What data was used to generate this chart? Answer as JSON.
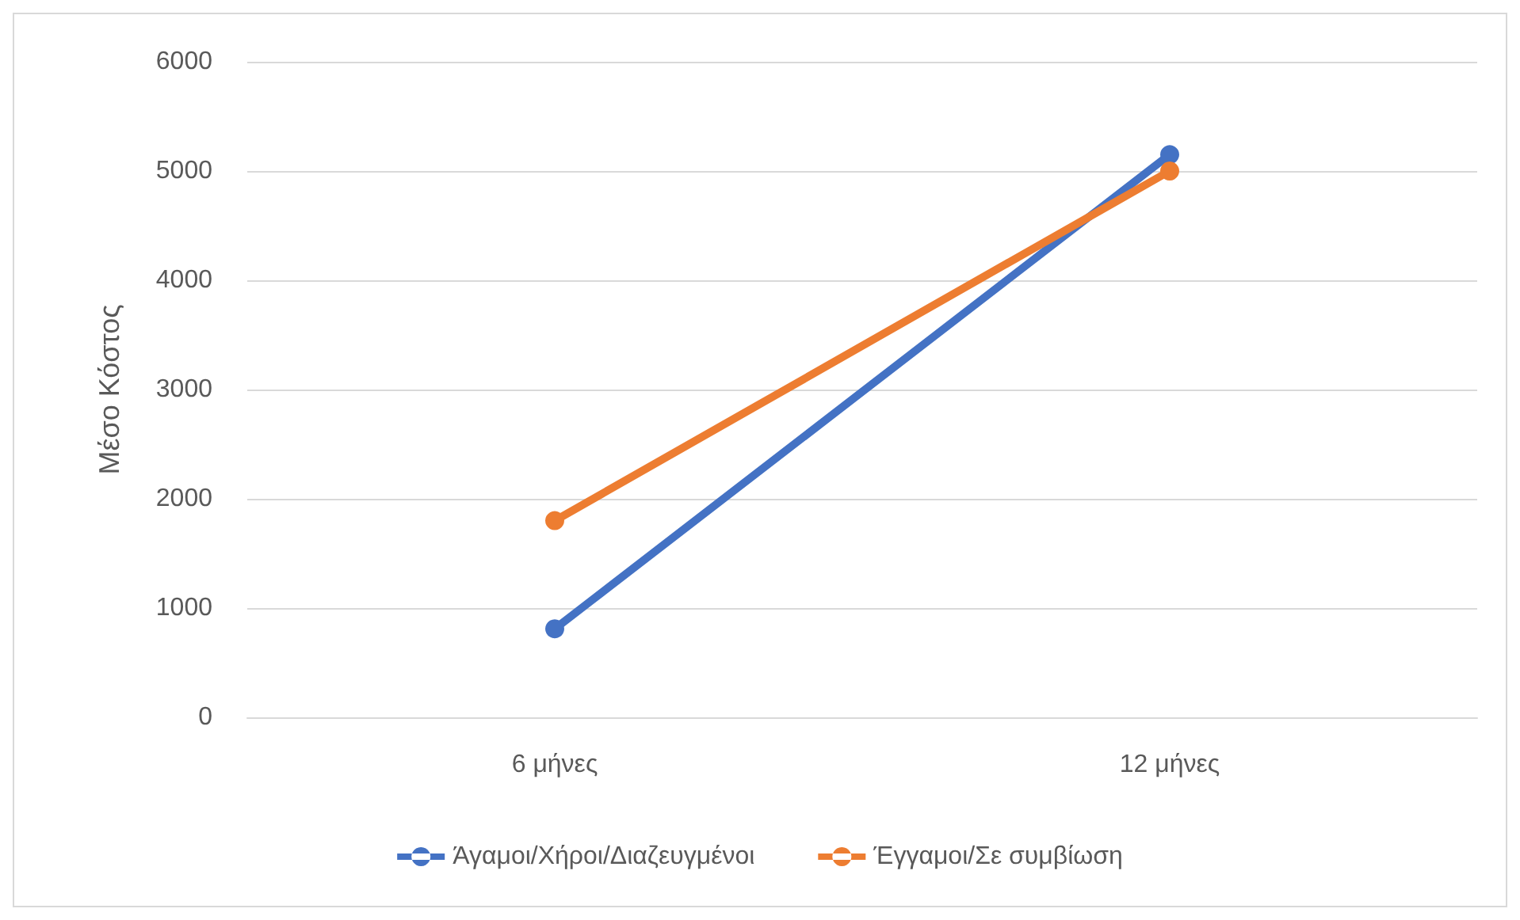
{
  "chart_data": {
    "type": "line",
    "ylabel": "Μέσο Κόστος",
    "categories": [
      "6 μήνες",
      "12 μήνες"
    ],
    "series": [
      {
        "name": "Άγαμοι/Χήροι/Διαζευγμένοι",
        "color": "#4472c4",
        "values": [
          810,
          5150
        ]
      },
      {
        "name": "Έγγαμοι/Σε συμβίωση",
        "color": "#ed7d31",
        "values": [
          1800,
          5000
        ]
      }
    ],
    "ylim": [
      0,
      6000
    ],
    "yticks": [
      0,
      1000,
      2000,
      3000,
      4000,
      5000,
      6000
    ],
    "grid": "y",
    "legend": "bottom",
    "marker": "circle",
    "line_style": "solid"
  }
}
